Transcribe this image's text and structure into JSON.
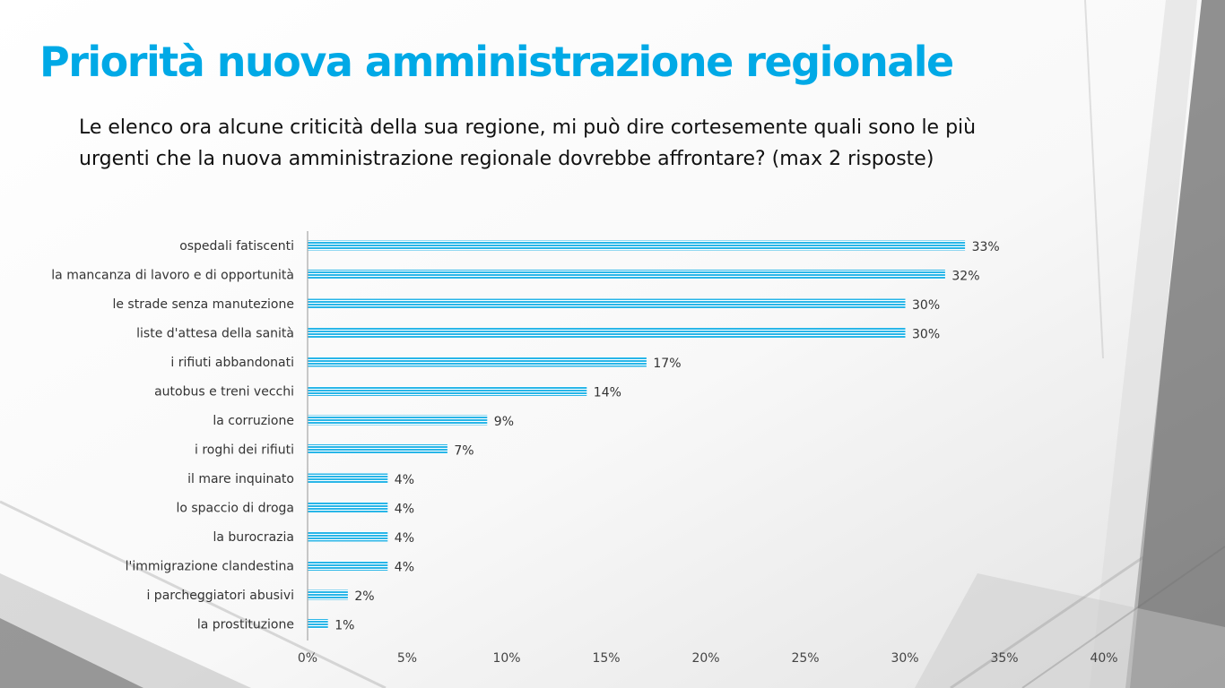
{
  "slide": {
    "title": "Priorità nuova amministrazione regionale",
    "question": "Le elenco ora alcune criticità della sua regione, mi può dire cortesemente quali sono le più urgenti che la nuova amministrazione regionale dovrebbe affrontare? (max 2 risposte)"
  },
  "colors": {
    "title": "#00a9e6",
    "bar": "#29b6e8",
    "bar_stripe": "#ffffff"
  },
  "chart_data": {
    "type": "bar",
    "orientation": "horizontal",
    "categories": [
      "ospedali fatiscenti",
      "la mancanza di lavoro e di opportunità",
      "le strade senza manutezione",
      "liste d'attesa della sanità",
      "i rifiuti abbandonati",
      "autobus e treni vecchi",
      "la corruzione",
      "i roghi dei rifiuti",
      "il mare inquinato",
      "lo spaccio di droga",
      "la burocrazia",
      "l'immigrazione clandestina",
      "i parcheggiatori abusivi",
      "la prostituzione"
    ],
    "values": [
      33,
      32,
      30,
      30,
      17,
      14,
      9,
      7,
      4,
      4,
      4,
      4,
      2,
      1
    ],
    "value_labels": [
      "33%",
      "32%",
      "30%",
      "30%",
      "17%",
      "14%",
      "9%",
      "7%",
      "4%",
      "4%",
      "4%",
      "4%",
      "2%",
      "1%"
    ],
    "xlim": [
      0,
      40
    ],
    "xticks": [
      0,
      5,
      10,
      15,
      20,
      25,
      30,
      35,
      40
    ],
    "xtick_labels": [
      "0%",
      "5%",
      "10%",
      "15%",
      "20%",
      "25%",
      "30%",
      "35%",
      "40%"
    ],
    "grid": false,
    "legend": "none"
  }
}
